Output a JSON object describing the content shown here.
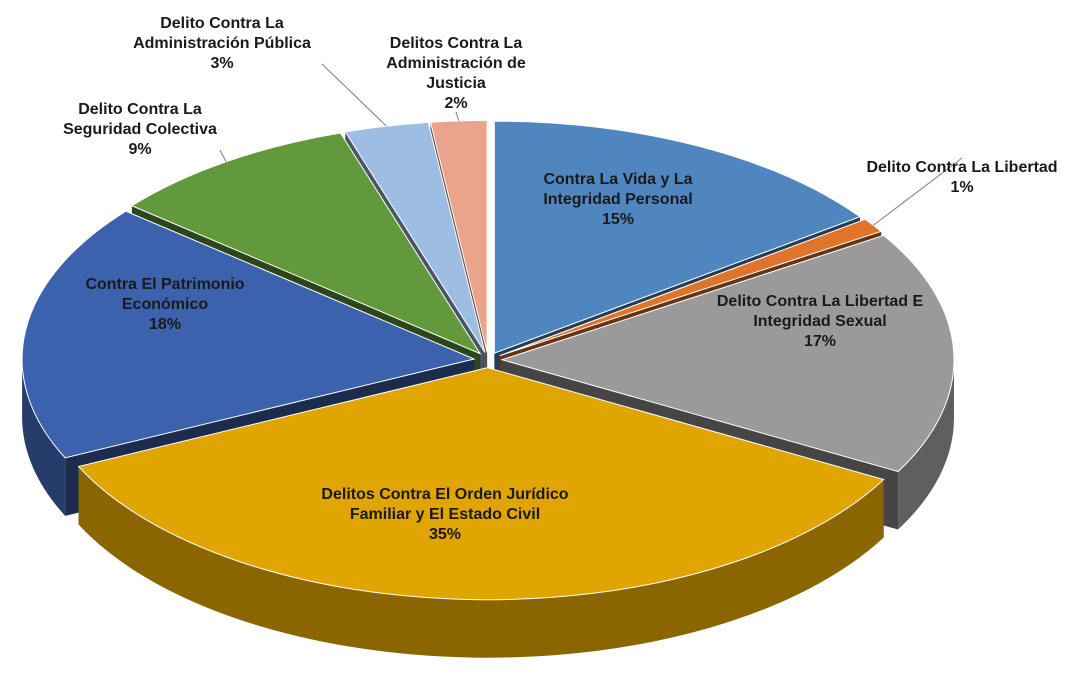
{
  "chart_data": {
    "type": "pie3d",
    "categories": [
      "Contra La Vida y La Integridad Personal",
      "Delito Contra La Libertad",
      "Delito Contra La Libertad E Integridad Sexual",
      "Delitos Contra El Orden Jurídico Familiar y El Estado Civil",
      "Contra El Patrimonio Económico",
      "Delito Contra La Seguridad Colectiva",
      "Delito Contra La Administración Pública",
      "Delitos Contra La Administración de Justicia"
    ],
    "values": [
      15,
      1,
      17,
      35,
      18,
      9,
      3,
      2
    ],
    "value_labels": [
      "15%",
      "1%",
      "17%",
      "35%",
      "18%",
      "9%",
      "3%",
      "2%"
    ],
    "colors": [
      "#4f86c0",
      "#e0742a",
      "#9a9a9a",
      "#e0a500",
      "#3d62ad",
      "#62993c",
      "#9ebde3",
      "#eba48c"
    ]
  }
}
